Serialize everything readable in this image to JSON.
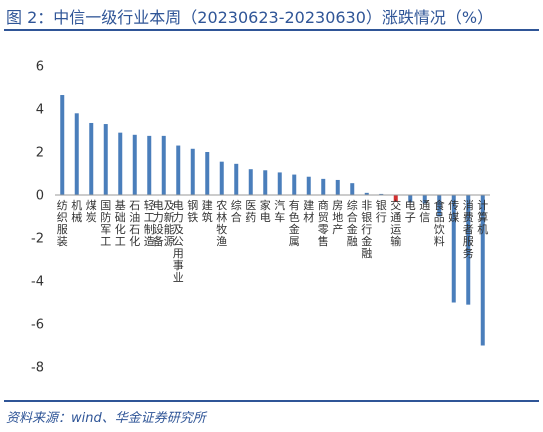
{
  "figure": {
    "title": "图 2：中信一级行业本周（20230623-20230630）涨跌情况（%）",
    "source": "资料来源：wind、华金证券研究所"
  },
  "colors": {
    "bar": "#4a7ebb",
    "highlight_bar": "#d32f2f",
    "axis": "#999999",
    "rule": "#2f5597"
  },
  "chart_data": {
    "type": "bar",
    "title": "",
    "xlabel": "",
    "ylabel": "",
    "ylim": [
      -8,
      6
    ],
    "yticks": [
      -8,
      -6,
      -4,
      -2,
      0,
      2,
      4,
      6
    ],
    "grid": false,
    "legend": "none",
    "categories": [
      "纺织服装",
      "机械",
      "煤炭",
      "国防军工",
      "基础化工",
      "石油石化",
      "轻工制造",
      "电力设备及新能源",
      "电力及公用事业",
      "钢铁",
      "建筑",
      "农林牧渔",
      "综合",
      "医药",
      "家电",
      "汽车",
      "有色金属",
      "建材",
      "商贸零售",
      "房地产",
      "综合金融",
      "非银行金融",
      "银行",
      "交通运输",
      "电子",
      "通信",
      "食品饮料",
      "传媒",
      "消费者服务",
      "计算机"
    ],
    "values": [
      4.65,
      3.8,
      3.35,
      3.3,
      2.9,
      2.8,
      2.75,
      2.75,
      2.3,
      2.15,
      2.0,
      1.55,
      1.45,
      1.2,
      1.15,
      1.05,
      0.95,
      0.85,
      0.75,
      0.7,
      0.55,
      0.1,
      0.05,
      -0.3,
      -0.35,
      -0.4,
      -1.0,
      -5.0,
      -5.1,
      -7.0
    ],
    "highlight_category": "交通运输"
  }
}
